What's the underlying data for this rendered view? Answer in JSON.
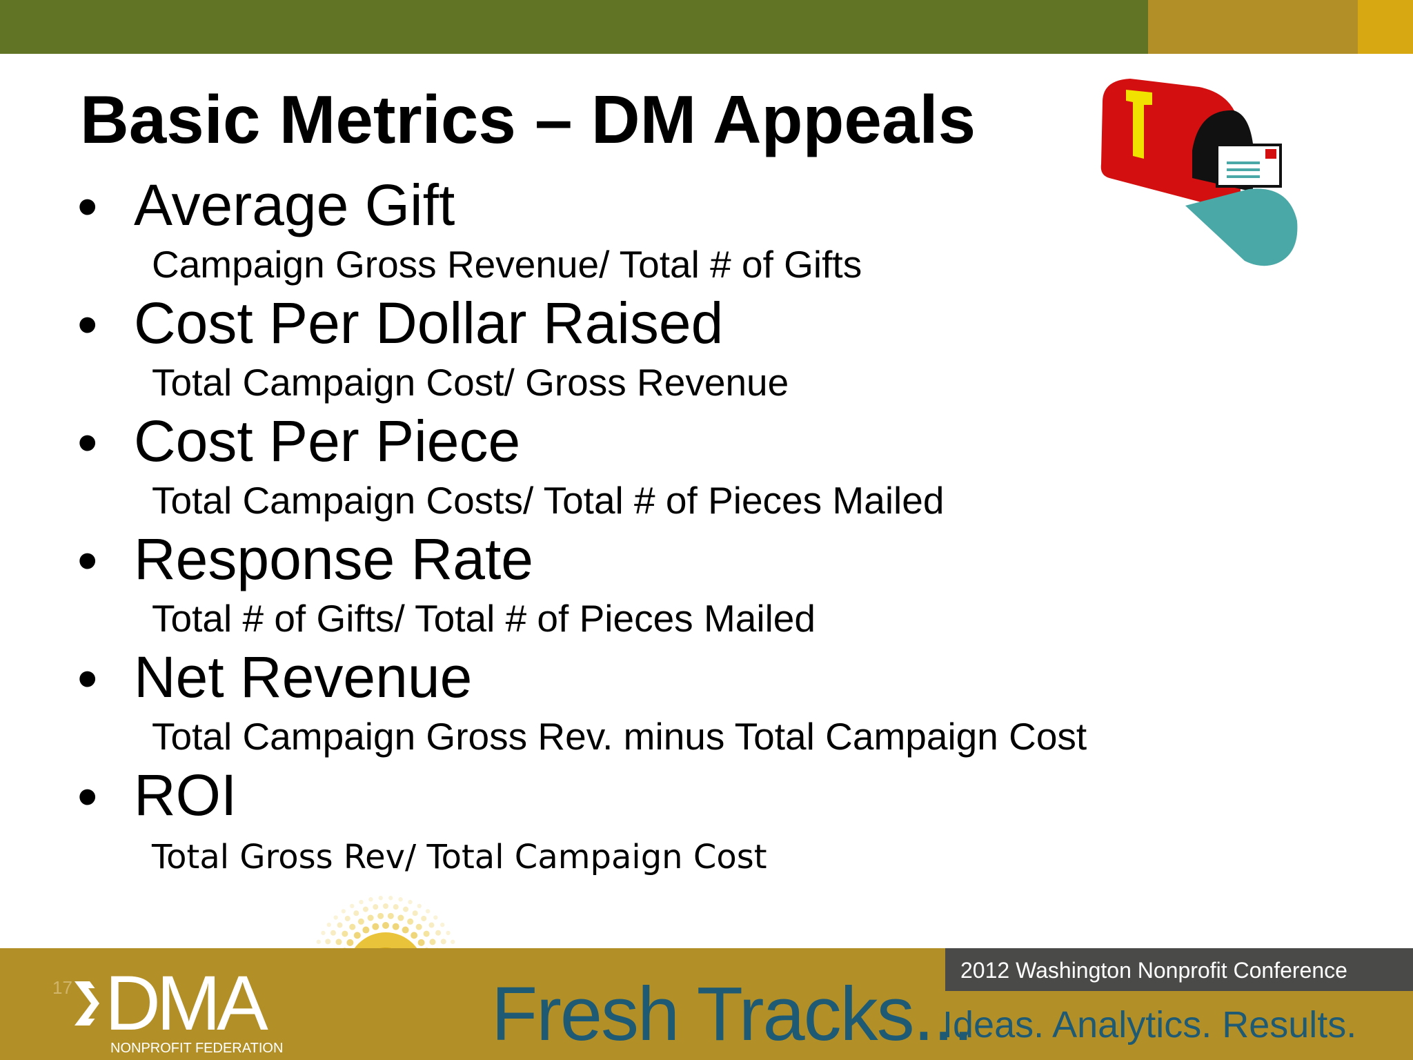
{
  "slide": {
    "title": "Basic Metrics – DM Appeals",
    "slide_number": "17"
  },
  "metrics": [
    {
      "name": "Average Gift",
      "formula": "Campaign Gross Revenue/ Total # of Gifts"
    },
    {
      "name": "Cost Per Dollar Raised",
      "formula": "Total Campaign Cost/ Gross Revenue"
    },
    {
      "name": "Cost Per Piece",
      "formula": "Total Campaign Costs/ Total # of Pieces Mailed"
    },
    {
      "name": "Response Rate",
      "formula": "Total # of Gifts/ Total # of Pieces Mailed"
    },
    {
      "name": "Net Revenue",
      "formula": "Total Campaign Gross Rev. minus Total Campaign Cost"
    },
    {
      "name": "ROI",
      "formula": "Total Gross Rev/ Total Campaign Cost"
    }
  ],
  "bullet_glyph": "•",
  "footer": {
    "logo_text": "DMA",
    "logo_subtext": "NONPROFIT FEDERATION",
    "brand": "Fresh Tracks...",
    "tagline": "Ideas. Analytics. Results.",
    "conference": "2012 Washington Nonprofit Conference"
  },
  "icons": {
    "mailbox": "mailbox-icon",
    "sun": "sun-burst-icon",
    "logo_chevrons": "double-chevron-icon"
  },
  "colors": {
    "top_green": "#617325",
    "top_olive": "#b39027",
    "top_gold": "#d8a812",
    "footer_bg": "#b39027",
    "footer_bar": "#4a4a49",
    "brand_blue": "#1f5a74",
    "mailbox_red": "#d40f0f",
    "mailbox_teal": "#4aa8a6"
  }
}
